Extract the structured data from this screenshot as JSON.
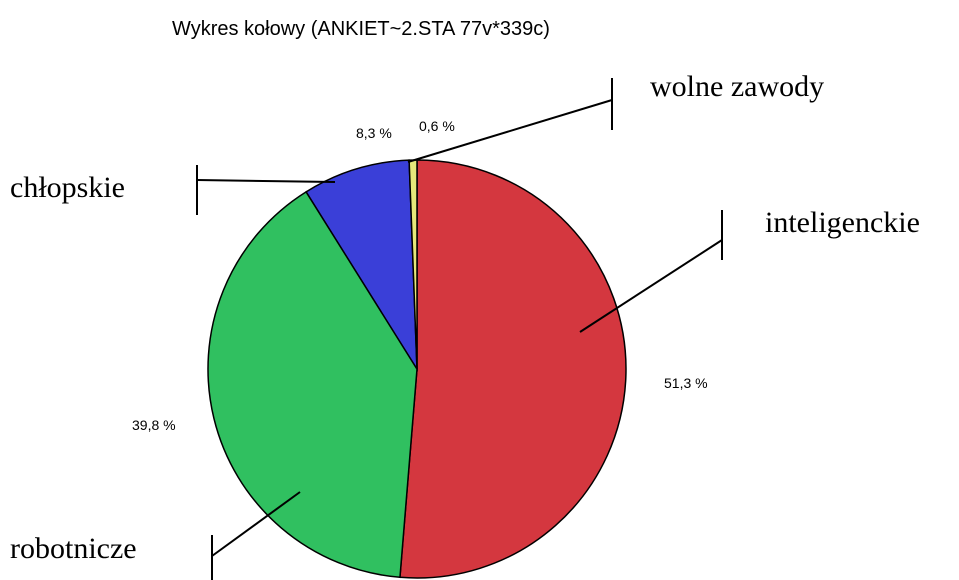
{
  "chart_data": {
    "type": "pie",
    "title": "Wykres kołowy (ANKIET~2.STA 77v*339c)",
    "categories": [
      "inteligenckie",
      "robotnicze",
      "chłopskie",
      "wolne zawody"
    ],
    "values": [
      51.3,
      39.8,
      8.3,
      0.6
    ],
    "value_labels": [
      "51,3 %",
      "39,8 %",
      "8,3 %",
      "0,6 %"
    ],
    "colors": [
      "#d4373f",
      "#30c060",
      "#3a3fd8",
      "#e6e87a"
    ]
  }
}
